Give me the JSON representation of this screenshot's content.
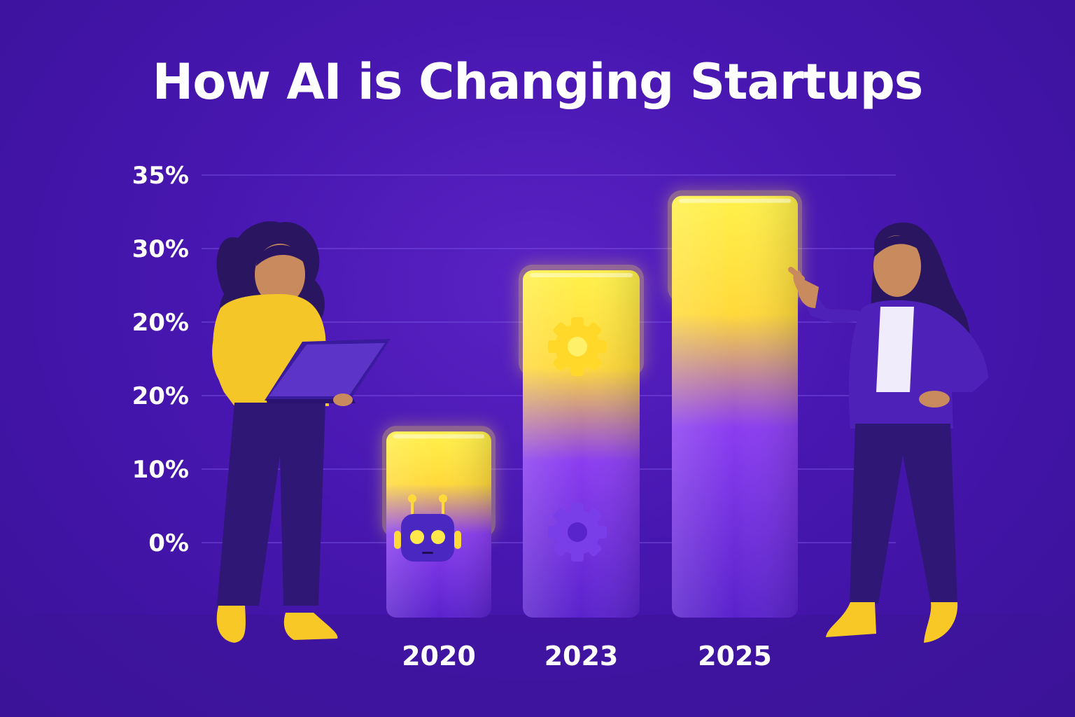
{
  "title": "How AI is Changing Startups",
  "colors": {
    "background": "#4716b0",
    "bar_top": "#ffe533",
    "bar_bottom": "#6a2be0",
    "skin": "#c98a5e",
    "hair": "#2a1660",
    "accent_yellow": "#f7c826"
  },
  "chart_data": {
    "type": "bar",
    "title": "How AI is Changing Startups",
    "categories": [
      "2020",
      "2023",
      "2025"
    ],
    "values": [
      15,
      28,
      34
    ],
    "y_tick_labels": [
      "0%",
      "10%",
      "20%",
      "20%",
      "30%",
      "35%"
    ],
    "ylim": [
      0,
      35
    ],
    "grid": true,
    "xlabel": "",
    "ylabel": "",
    "icons": [
      "robot-icon",
      "gear-icon",
      "gear-icon"
    ]
  }
}
